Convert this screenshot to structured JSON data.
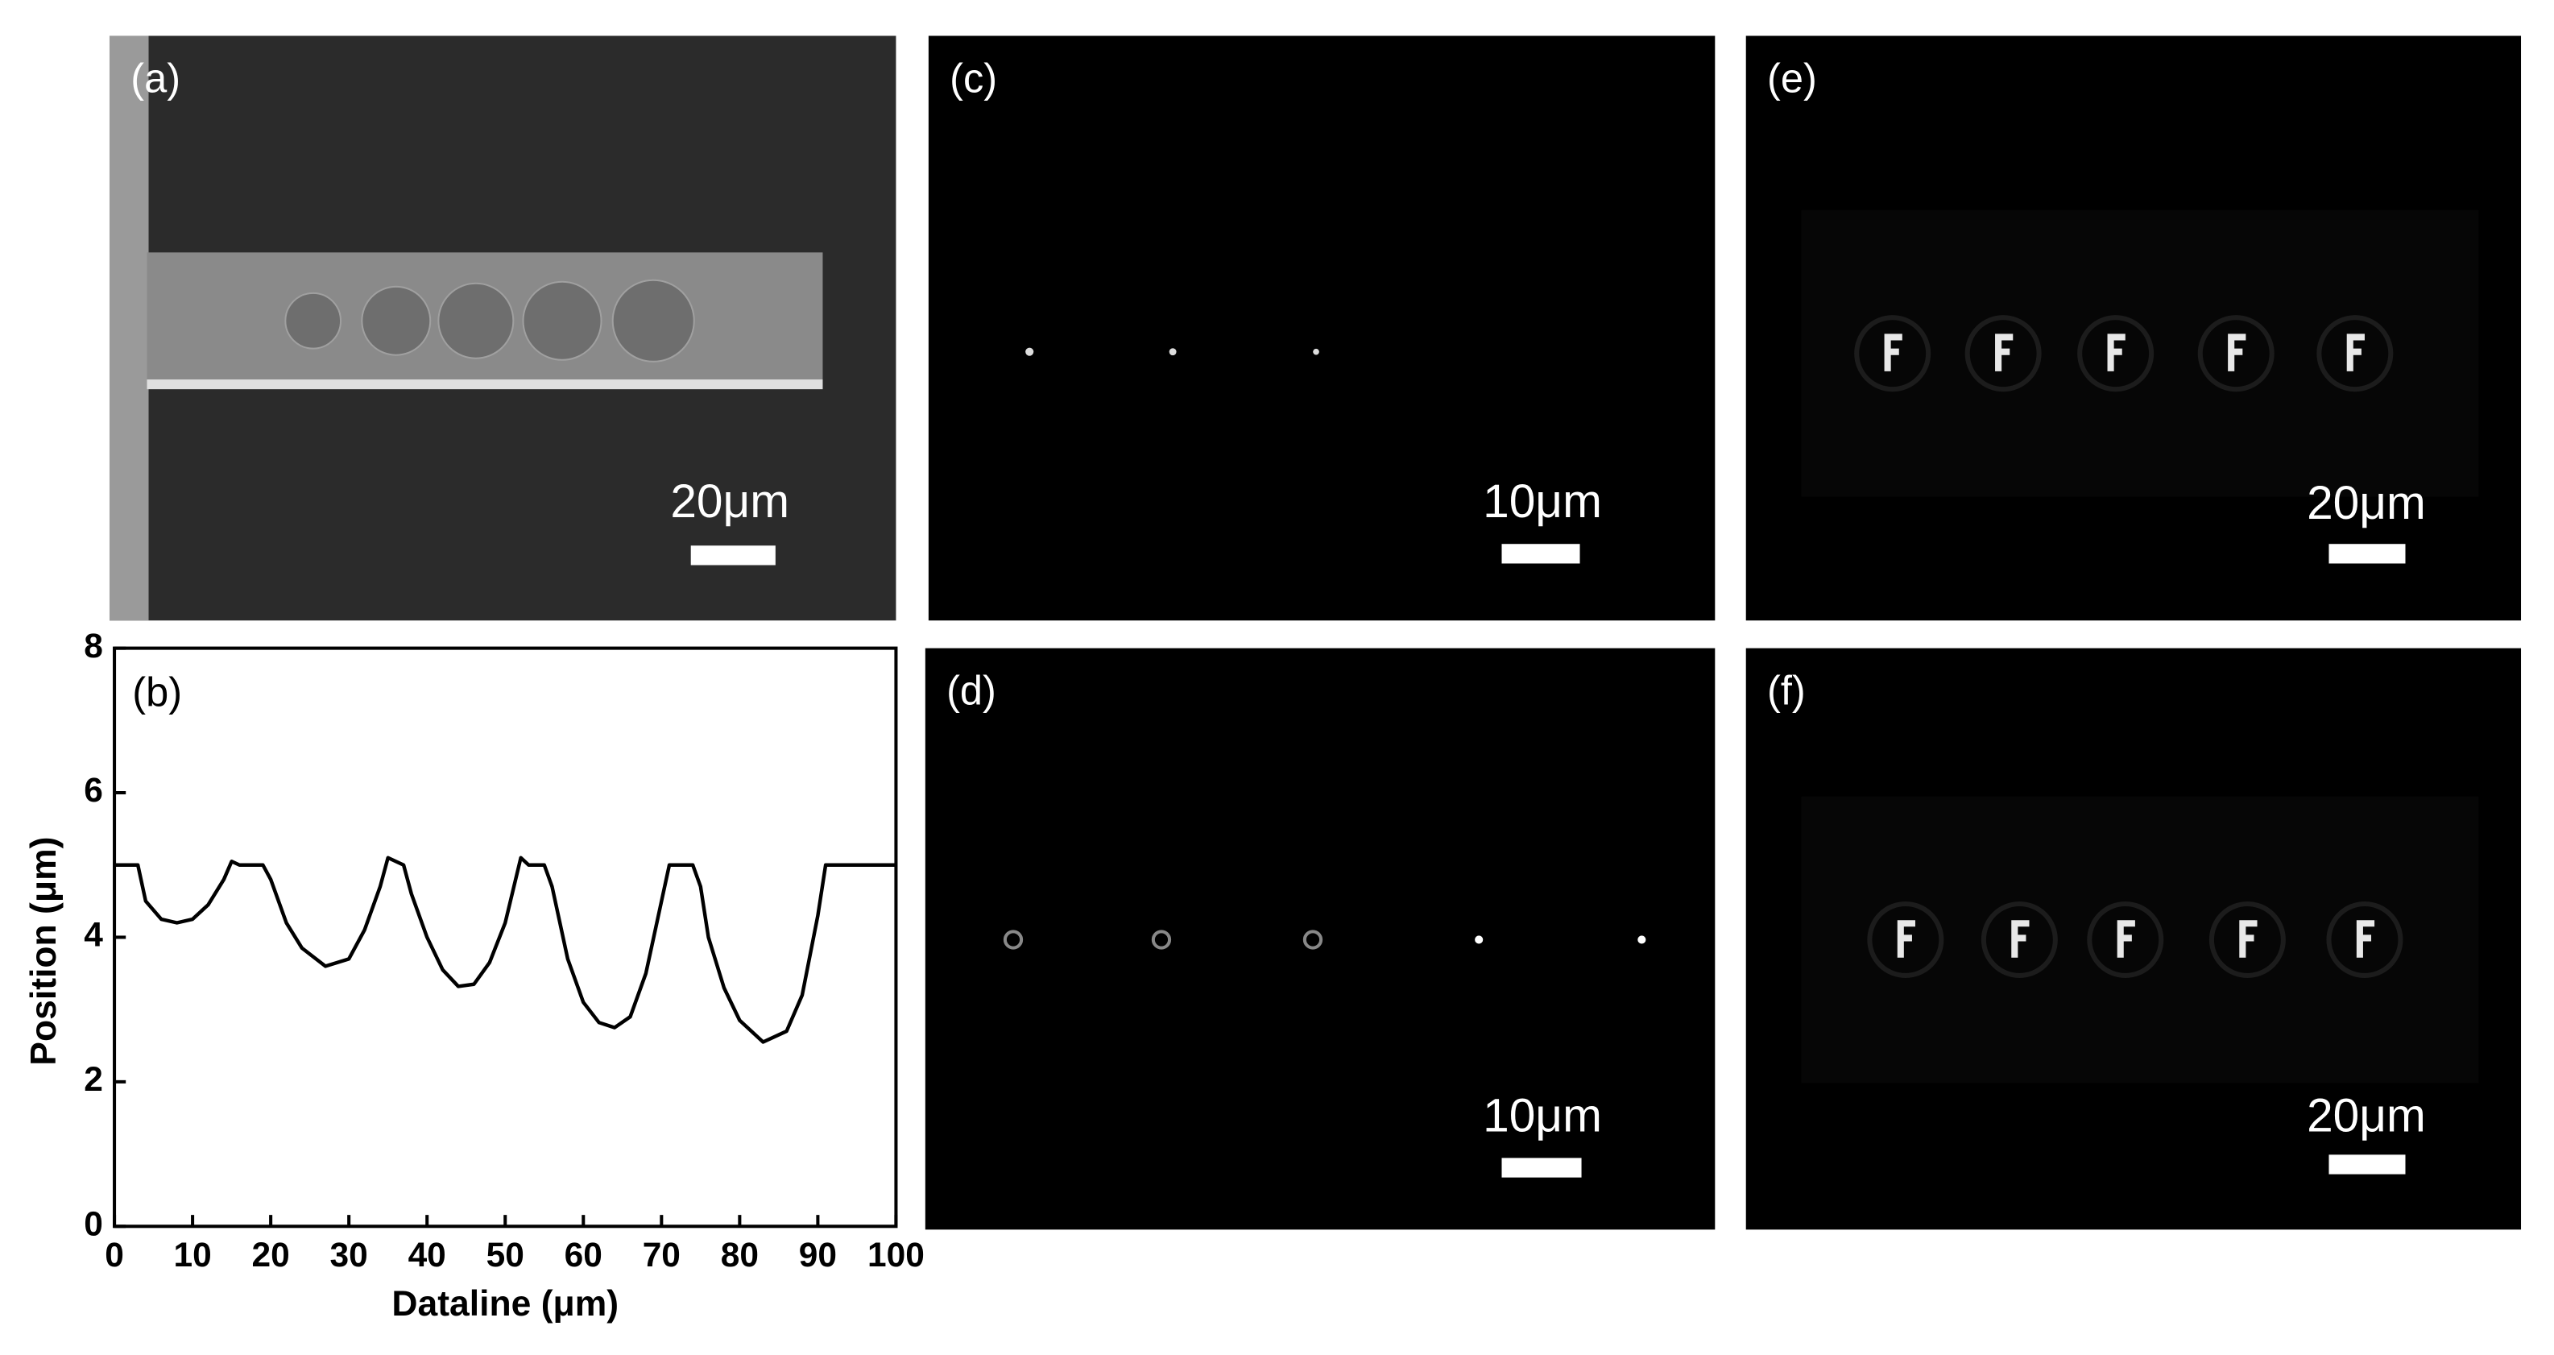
{
  "panels": [
    {
      "label": "(a)",
      "scale": "20μm"
    },
    {
      "label": "(c)",
      "scale": "10μm"
    },
    {
      "label": "(d)",
      "scale": "10μm"
    },
    {
      "label": "(e)",
      "scale": "20μm"
    },
    {
      "label": "(f)",
      "scale": "20μm"
    }
  ],
  "chart_data": {
    "type": "line",
    "panel_label": "(b)",
    "x_label": "Dataline (μm)",
    "y_label": "Position (μm)",
    "x": [
      0,
      3,
      4,
      6,
      8,
      10,
      12,
      14,
      15,
      16,
      19,
      20,
      22,
      24,
      27,
      30,
      32,
      34,
      35,
      36,
      37,
      38,
      40,
      42,
      44,
      46,
      48,
      50,
      52,
      53,
      55,
      56,
      58,
      60,
      62,
      64,
      66,
      68,
      70,
      71,
      72,
      74,
      75,
      76,
      78,
      80,
      83,
      86,
      88,
      90,
      91,
      92,
      95,
      100
    ],
    "values": [
      5,
      5,
      4.5,
      4.25,
      4.2,
      4.25,
      4.45,
      4.8,
      5.05,
      5,
      5,
      4.8,
      4.2,
      3.85,
      3.6,
      3.7,
      4.1,
      4.7,
      5.1,
      5.05,
      5,
      4.6,
      4.0,
      3.55,
      3.32,
      3.35,
      3.65,
      4.2,
      5.1,
      5,
      5,
      4.7,
      3.7,
      3.1,
      2.82,
      2.75,
      2.9,
      3.5,
      4.5,
      5,
      5,
      5,
      4.7,
      4.0,
      3.3,
      2.85,
      2.55,
      2.7,
      3.2,
      4.3,
      5,
      5,
      5,
      5
    ],
    "color": "#000000",
    "xlim": [
      0,
      100
    ],
    "xticks": [
      0,
      10,
      20,
      30,
      40,
      50,
      60,
      70,
      80,
      90,
      100
    ],
    "ylim": [
      0,
      8
    ],
    "yticks": [
      0,
      2,
      4,
      6,
      8
    ]
  }
}
